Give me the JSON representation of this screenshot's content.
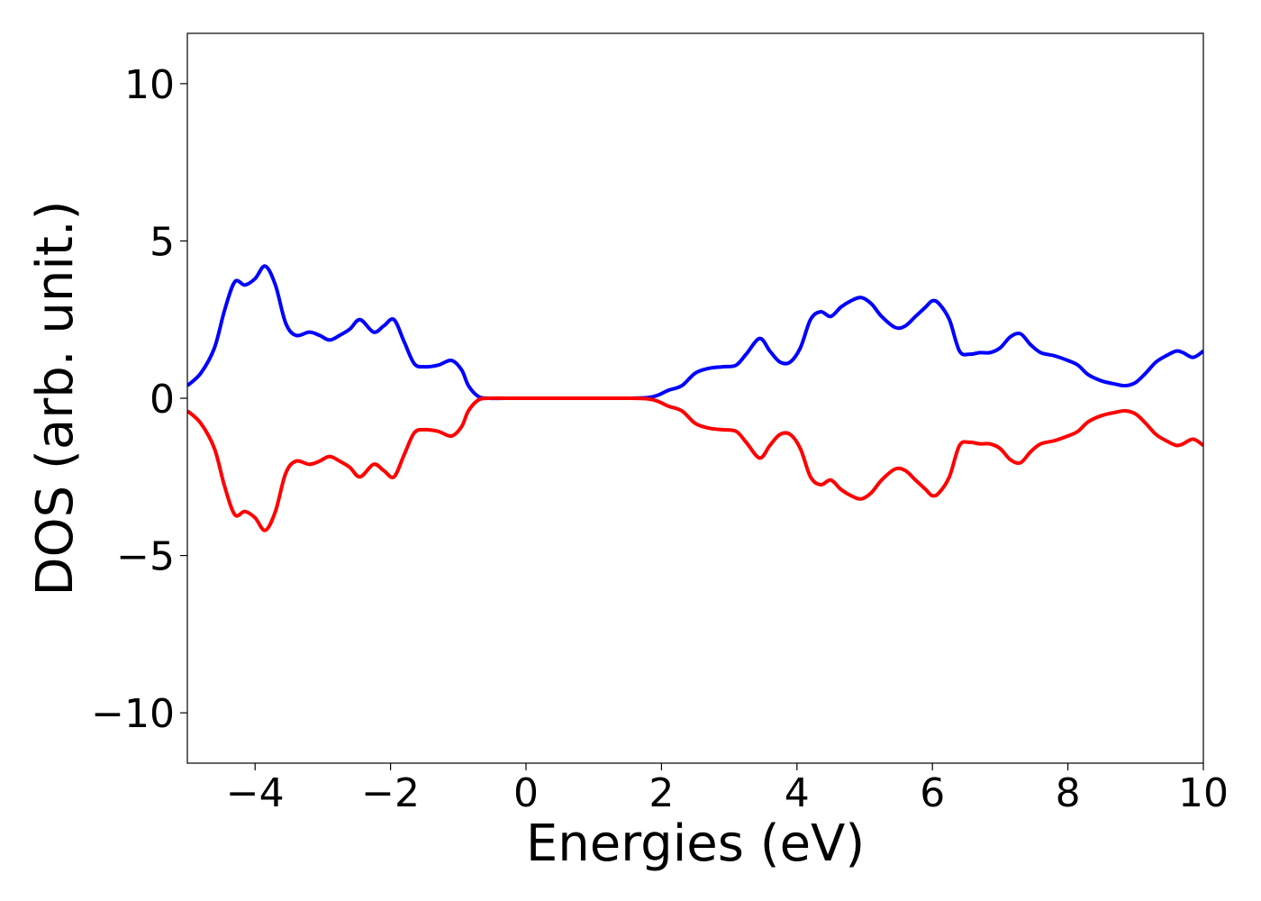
{
  "chart_data": {
    "type": "line",
    "title": "",
    "xlabel": "Energies (eV)",
    "ylabel": "DOS (arb. unit.)",
    "xlim": [
      -5,
      10
    ],
    "ylim": [
      -11.6,
      11.6
    ],
    "x_ticks": [
      -4,
      -2,
      0,
      2,
      4,
      6,
      8,
      10
    ],
    "x_tick_labels": [
      "−4",
      "−2",
      "0",
      "2",
      "4",
      "6",
      "8",
      "10"
    ],
    "y_ticks": [
      -10,
      -5,
      0,
      5,
      10
    ],
    "y_tick_labels": [
      "−10",
      "−5",
      "0",
      "5",
      "10"
    ],
    "grid": false,
    "legend": "none",
    "series": [
      {
        "color": "#0000ff",
        "x": [
          -5.0,
          -4.8,
          -4.6,
          -4.45,
          -4.3,
          -4.15,
          -4.0,
          -3.85,
          -3.7,
          -3.55,
          -3.4,
          -3.2,
          -3.05,
          -2.9,
          -2.75,
          -2.6,
          -2.45,
          -2.25,
          -2.1,
          -1.95,
          -1.8,
          -1.65,
          -1.5,
          -1.3,
          -1.1,
          -0.95,
          -0.85,
          -0.7,
          -0.55,
          -0.3,
          0.0,
          0.5,
          1.0,
          1.5,
          1.8,
          1.95,
          2.1,
          2.3,
          2.5,
          2.7,
          2.9,
          3.1,
          3.25,
          3.45,
          3.6,
          3.75,
          3.9,
          4.05,
          4.2,
          4.35,
          4.5,
          4.65,
          4.8,
          4.95,
          5.1,
          5.25,
          5.45,
          5.6,
          5.75,
          5.9,
          6.0,
          6.1,
          6.25,
          6.4,
          6.55,
          6.7,
          6.85,
          7.0,
          7.15,
          7.3,
          7.45,
          7.6,
          7.8,
          8.0,
          8.15,
          8.3,
          8.5,
          8.7,
          8.85,
          9.0,
          9.15,
          9.3,
          9.45,
          9.6,
          9.7,
          9.85,
          10.0
        ],
        "y": [
          0.4,
          0.8,
          1.6,
          2.8,
          3.7,
          3.6,
          3.8,
          4.2,
          3.6,
          2.4,
          2.0,
          2.1,
          2.0,
          1.85,
          2.0,
          2.2,
          2.5,
          2.1,
          2.3,
          2.5,
          1.8,
          1.1,
          1.0,
          1.05,
          1.2,
          0.9,
          0.4,
          0.05,
          0.0,
          0.0,
          0.0,
          0.0,
          0.0,
          0.0,
          0.02,
          0.1,
          0.25,
          0.4,
          0.8,
          0.95,
          1.0,
          1.05,
          1.4,
          1.9,
          1.5,
          1.15,
          1.15,
          1.6,
          2.5,
          2.75,
          2.6,
          2.9,
          3.1,
          3.2,
          3.0,
          2.6,
          2.25,
          2.3,
          2.6,
          2.9,
          3.1,
          3.0,
          2.5,
          1.5,
          1.4,
          1.45,
          1.45,
          1.6,
          1.95,
          2.05,
          1.7,
          1.45,
          1.35,
          1.2,
          1.05,
          0.75,
          0.55,
          0.45,
          0.4,
          0.5,
          0.8,
          1.15,
          1.35,
          1.5,
          1.45,
          1.3,
          1.5
        ]
      },
      {
        "color": "#ff0000",
        "x": [
          -5.0,
          -4.8,
          -4.6,
          -4.45,
          -4.3,
          -4.15,
          -4.0,
          -3.85,
          -3.7,
          -3.55,
          -3.4,
          -3.2,
          -3.05,
          -2.9,
          -2.75,
          -2.6,
          -2.45,
          -2.25,
          -2.1,
          -1.95,
          -1.8,
          -1.65,
          -1.5,
          -1.3,
          -1.1,
          -0.95,
          -0.85,
          -0.7,
          -0.55,
          -0.3,
          0.0,
          0.5,
          1.0,
          1.5,
          1.8,
          1.95,
          2.1,
          2.3,
          2.5,
          2.7,
          2.9,
          3.1,
          3.25,
          3.45,
          3.6,
          3.75,
          3.9,
          4.05,
          4.2,
          4.35,
          4.5,
          4.65,
          4.8,
          4.95,
          5.1,
          5.25,
          5.45,
          5.6,
          5.75,
          5.9,
          6.0,
          6.1,
          6.25,
          6.4,
          6.55,
          6.7,
          6.85,
          7.0,
          7.15,
          7.3,
          7.45,
          7.6,
          7.8,
          8.0,
          8.15,
          8.3,
          8.5,
          8.7,
          8.85,
          9.0,
          9.15,
          9.3,
          9.45,
          9.6,
          9.7,
          9.85,
          10.0
        ],
        "y": [
          -0.4,
          -0.8,
          -1.6,
          -2.8,
          -3.7,
          -3.6,
          -3.8,
          -4.2,
          -3.6,
          -2.4,
          -2.0,
          -2.1,
          -2.0,
          -1.85,
          -2.0,
          -2.2,
          -2.5,
          -2.1,
          -2.3,
          -2.5,
          -1.8,
          -1.1,
          -1.0,
          -1.05,
          -1.2,
          -0.9,
          -0.4,
          -0.05,
          0.0,
          0.0,
          0.0,
          0.0,
          0.0,
          0.0,
          -0.02,
          -0.1,
          -0.25,
          -0.4,
          -0.8,
          -0.95,
          -1.0,
          -1.05,
          -1.4,
          -1.9,
          -1.5,
          -1.15,
          -1.15,
          -1.6,
          -2.5,
          -2.75,
          -2.6,
          -2.9,
          -3.1,
          -3.2,
          -3.0,
          -2.6,
          -2.25,
          -2.3,
          -2.6,
          -2.9,
          -3.1,
          -3.0,
          -2.5,
          -1.5,
          -1.4,
          -1.45,
          -1.45,
          -1.6,
          -1.95,
          -2.05,
          -1.7,
          -1.45,
          -1.35,
          -1.2,
          -1.05,
          -0.75,
          -0.55,
          -0.45,
          -0.4,
          -0.5,
          -0.8,
          -1.15,
          -1.35,
          -1.5,
          -1.45,
          -1.3,
          -1.5
        ]
      }
    ]
  }
}
